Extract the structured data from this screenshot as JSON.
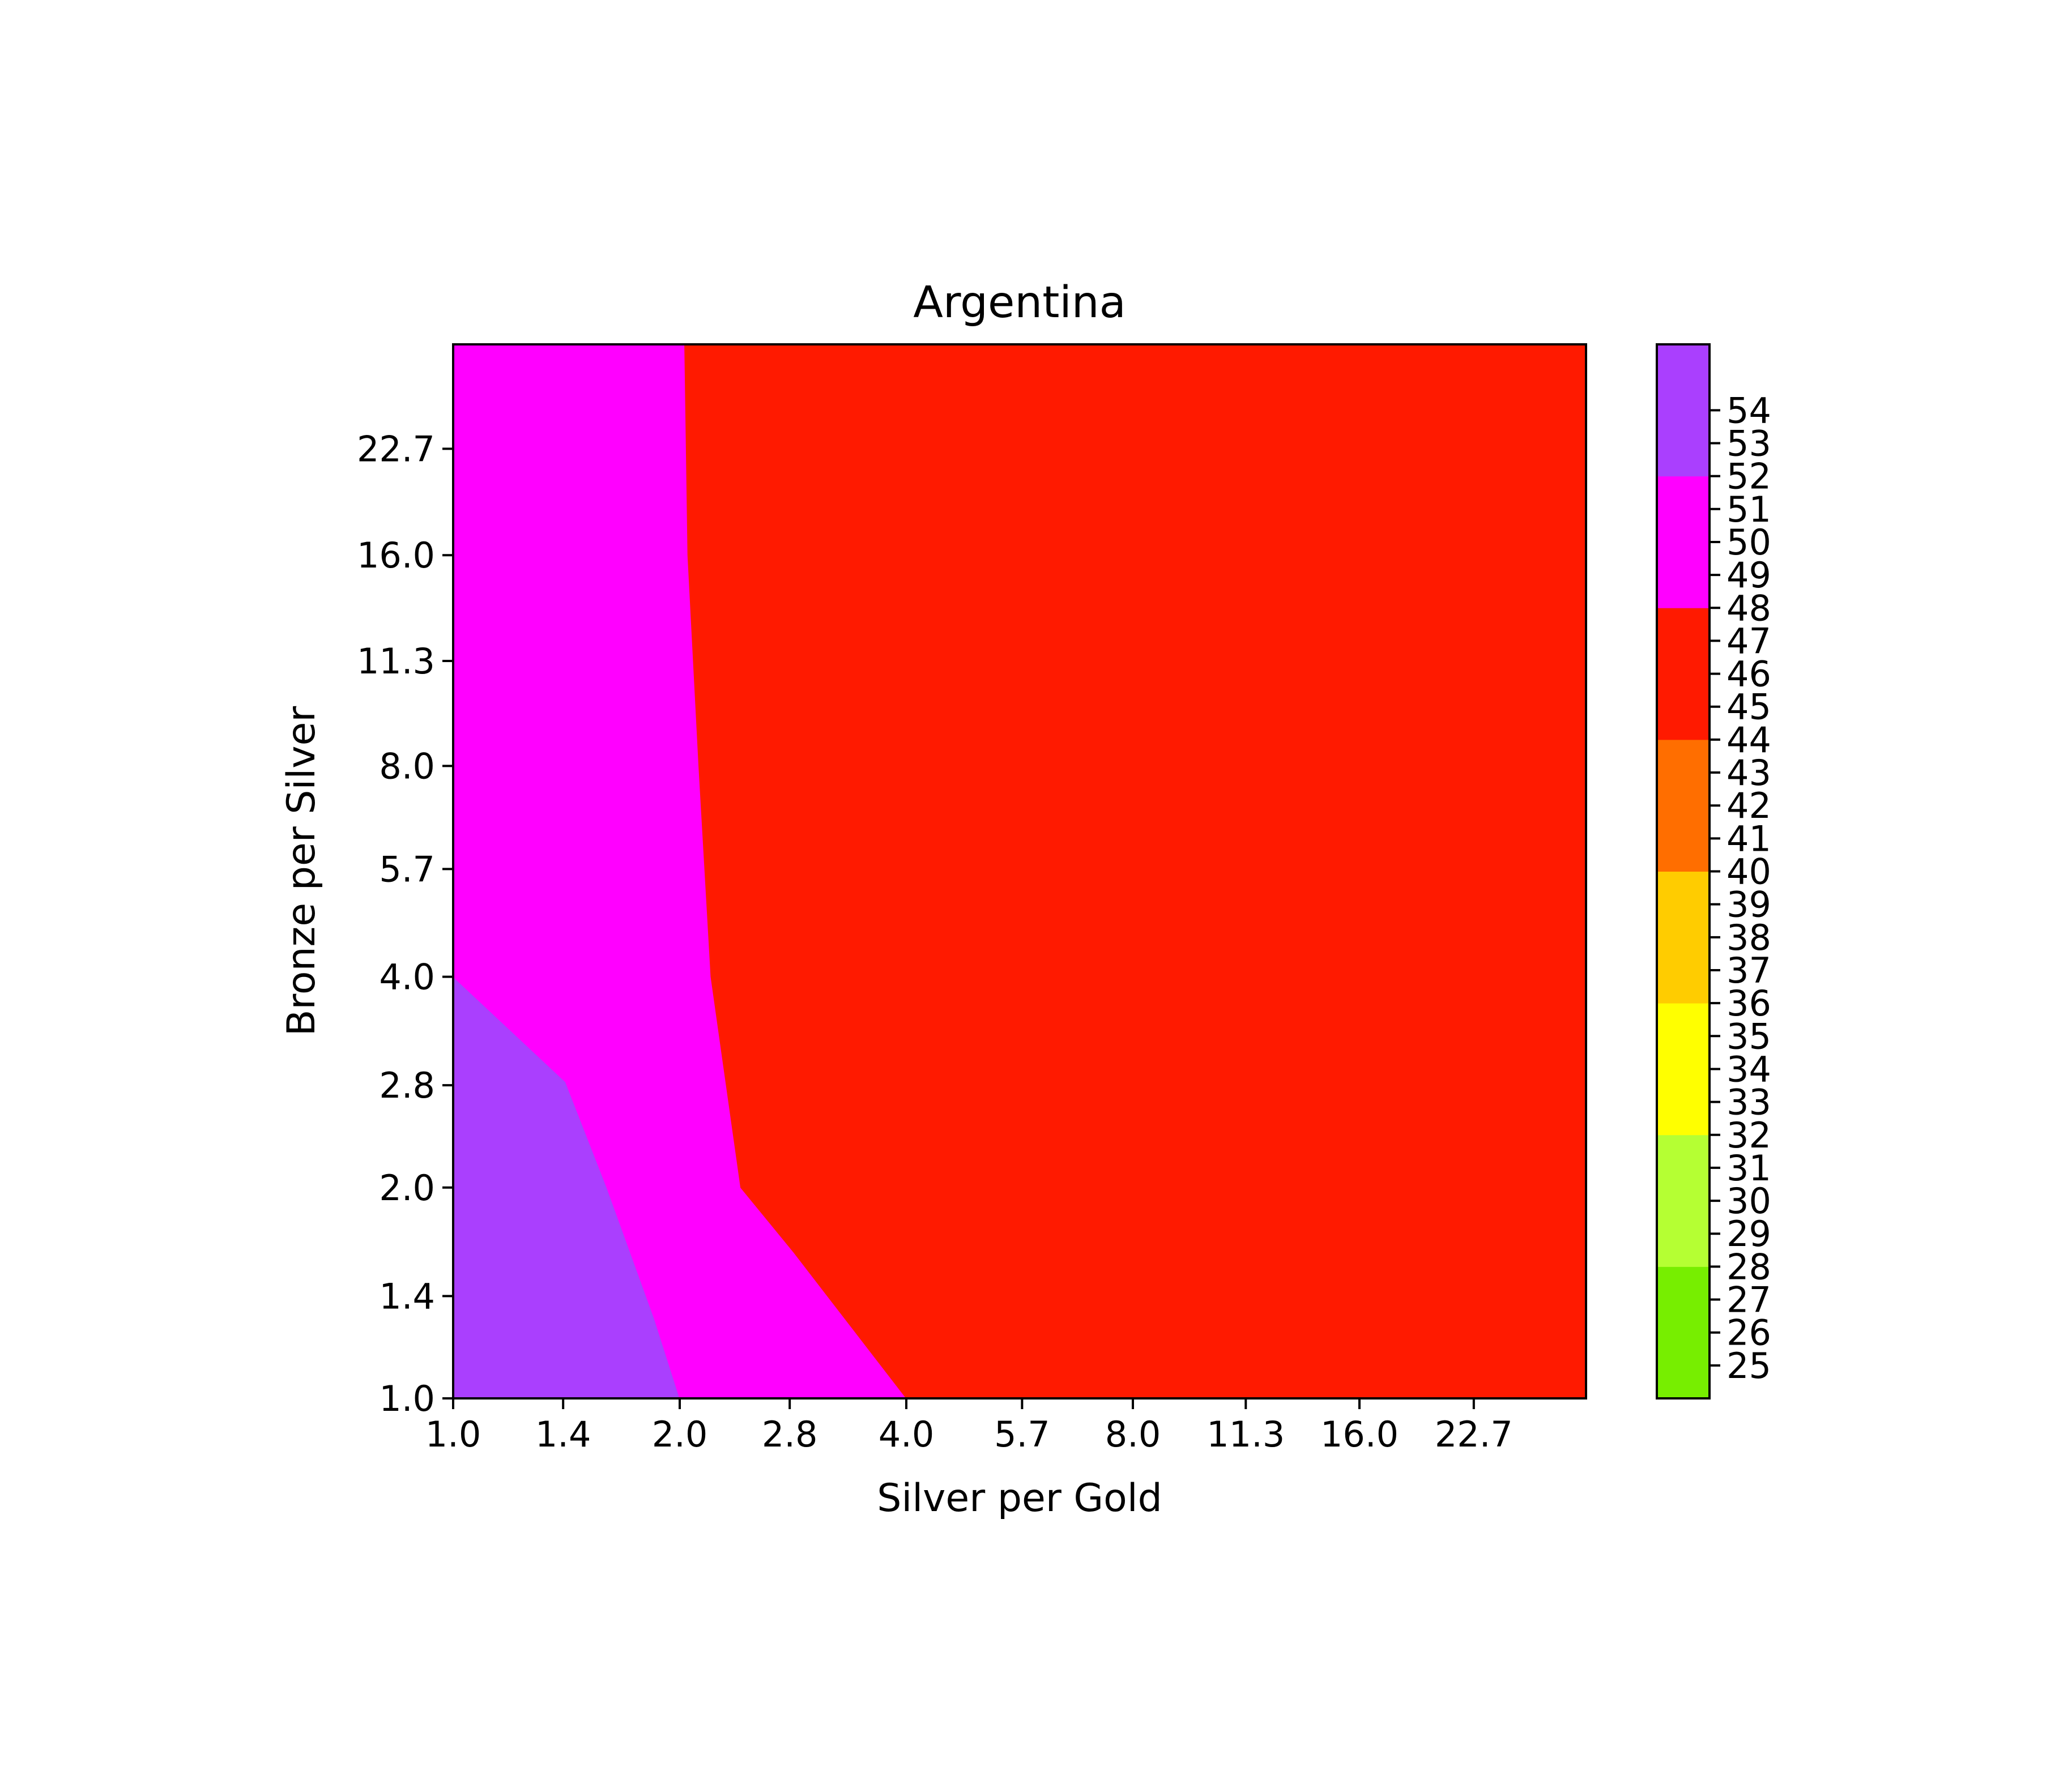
{
  "chart_data": {
    "type": "heatmap",
    "title": "Argentina",
    "xlabel": "Silver per Gold",
    "ylabel": "Bronze per Silver",
    "x_scale": "log2",
    "y_scale": "log2",
    "xlim": [
      1.0,
      32.0
    ],
    "ylim": [
      1.0,
      32.0
    ],
    "x_ticks": [
      "1.0",
      "1.4",
      "2.0",
      "2.8",
      "4.0",
      "5.7",
      "8.0",
      "11.3",
      "16.0",
      "22.7"
    ],
    "y_ticks": [
      "1.0",
      "1.4",
      "2.0",
      "2.8",
      "4.0",
      "5.7",
      "8.0",
      "11.3",
      "16.0",
      "22.7"
    ],
    "regions": [
      {
        "band": "52-56",
        "color": "#aa3ffe",
        "boundary": [
          [
            1.0,
            1.0
          ],
          [
            2.0,
            1.0
          ],
          [
            1.85,
            1.3
          ],
          [
            1.6,
            2.0
          ],
          [
            1.41,
            2.83
          ],
          [
            1.0,
            4.0
          ]
        ]
      },
      {
        "band": "48-52",
        "color": "#ff00ff",
        "boundary": [
          [
            2.0,
            1.0
          ],
          [
            4.0,
            1.0
          ],
          [
            2.83,
            1.62
          ],
          [
            2.41,
            2.0
          ],
          [
            2.2,
            4.0
          ],
          [
            2.12,
            8.0
          ],
          [
            2.05,
            16.0
          ],
          [
            2.03,
            32.0
          ],
          [
            1.0,
            32.0
          ],
          [
            1.0,
            4.0
          ],
          [
            1.41,
            2.83
          ],
          [
            1.6,
            2.0
          ],
          [
            1.85,
            1.3
          ]
        ]
      },
      {
        "band": "44-48",
        "color": "#ff1a00",
        "boundary": [
          [
            4.0,
            1.0
          ],
          [
            32.0,
            1.0
          ],
          [
            32.0,
            32.0
          ],
          [
            2.03,
            32.0
          ],
          [
            2.05,
            16.0
          ],
          [
            2.12,
            8.0
          ],
          [
            2.2,
            4.0
          ],
          [
            2.41,
            2.0
          ],
          [
            2.83,
            1.62
          ]
        ]
      }
    ],
    "colorbar": {
      "bands": [
        {
          "from": 24,
          "to": 28,
          "color": "#77ee00"
        },
        {
          "from": 28,
          "to": 32,
          "color": "#b5ff33"
        },
        {
          "from": 32,
          "to": 36,
          "color": "#ffff00"
        },
        {
          "from": 36,
          "to": 40,
          "color": "#ffcc00"
        },
        {
          "from": 40,
          "to": 44,
          "color": "#ff6e00"
        },
        {
          "from": 44,
          "to": 48,
          "color": "#ff1a00"
        },
        {
          "from": 48,
          "to": 52,
          "color": "#ff00ff"
        },
        {
          "from": 52,
          "to": 56,
          "color": "#aa3ffe"
        }
      ],
      "tick_labels": [
        "25",
        "26",
        "27",
        "28",
        "29",
        "30",
        "31",
        "32",
        "33",
        "34",
        "35",
        "36",
        "37",
        "38",
        "39",
        "40",
        "41",
        "42",
        "43",
        "44",
        "45",
        "46",
        "47",
        "48",
        "49",
        "50",
        "51",
        "52",
        "53",
        "54"
      ]
    }
  }
}
